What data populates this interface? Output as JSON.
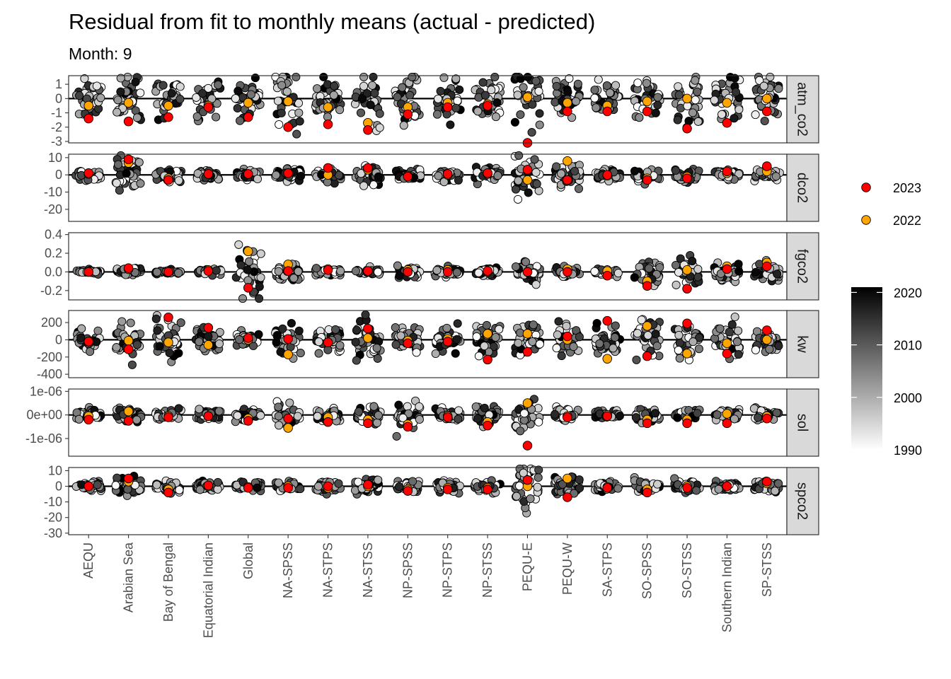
{
  "title": "Residual from fit to monthly means (actual - predicted)",
  "subtitle": "Month: 9",
  "chart_data": {
    "type": "scatter",
    "x_categories": [
      "AEQU",
      "Arabian Sea",
      "Bay of Bengal",
      "Equatorial Indian",
      "Global",
      "NA-SPSS",
      "NA-STPS",
      "NA-STSS",
      "NP-SPSS",
      "NP-STPS",
      "NP-STSS",
      "PEQU-E",
      "PEQU-W",
      "SA-STPS",
      "SO-SPSS",
      "SO-STSS",
      "Southern Indian",
      "SP-STSS"
    ],
    "facets": [
      {
        "name": "atm_co2",
        "ylim": [
          -3.1,
          1.6
        ],
        "ticks": [
          1,
          0,
          -1,
          -2,
          -3
        ],
        "tick_labels": [
          "1",
          "0",
          "-1",
          "-2",
          "-3"
        ],
        "spread": [
          0.7,
          0.8,
          0.8,
          0.7,
          0.7,
          1.1,
          0.8,
          0.9,
          1.1,
          0.8,
          0.8,
          1.1,
          0.7,
          0.6,
          0.8,
          0.9,
          0.8,
          0.7
        ],
        "y2023": [
          -1.4,
          -1.6,
          -1.3,
          -0.6,
          -1.3,
          -2.0,
          -1.8,
          -2.2,
          -1.1,
          -0.6,
          -0.5,
          -3.1,
          -0.9,
          -0.9,
          -0.9,
          -2.1,
          -1.7,
          -0.9
        ],
        "y2022": [
          -0.5,
          -0.3,
          -0.5,
          -0.5,
          -0.3,
          -0.2,
          -0.6,
          -1.7,
          -0.6,
          -0.3,
          -0.4,
          0.1,
          -0.3,
          -0.5,
          -0.2,
          0.0,
          -0.3,
          0.0
        ]
      },
      {
        "name": "dco2",
        "ylim": [
          -27,
          12
        ],
        "ticks": [
          10,
          0,
          -10,
          -20
        ],
        "tick_labels": [
          "10",
          "0",
          "-10",
          "-20"
        ],
        "spread": [
          1.5,
          4,
          2,
          1.5,
          1.5,
          2,
          2,
          3,
          1.8,
          2,
          2.2,
          6,
          4,
          1.5,
          1.8,
          2,
          1.5,
          2
        ],
        "y2023": [
          1,
          9,
          -3,
          0.5,
          0.5,
          1,
          4,
          4,
          -1,
          0.5,
          1,
          3,
          -3,
          0,
          -3,
          -2,
          2,
          5
        ],
        "y2022": [
          0.5,
          7,
          -2,
          0.5,
          0.5,
          1,
          0,
          3,
          -0.5,
          0,
          0.5,
          -3,
          8,
          -0.5,
          -2,
          -1,
          1,
          2
        ]
      },
      {
        "name": "fgco2",
        "ylim": [
          -0.3,
          0.42
        ],
        "ticks": [
          0.4,
          0.2,
          0.0,
          -0.2
        ],
        "tick_labels": [
          "0.4",
          "0.2",
          "0.0",
          "-0.2"
        ],
        "spread": [
          0.01,
          0.02,
          0.01,
          0.02,
          0.15,
          0.04,
          0.02,
          0.02,
          0.03,
          0.03,
          0.02,
          0.06,
          0.03,
          0.02,
          0.07,
          0.07,
          0.05,
          0.05
        ],
        "y2023": [
          0.0,
          0.04,
          0.0,
          0.01,
          -0.17,
          0.01,
          0.02,
          0.01,
          0.0,
          0.0,
          0.01,
          0.0,
          0.0,
          -0.04,
          -0.15,
          -0.18,
          0.03,
          0.06
        ],
        "y2022": [
          0.0,
          0.03,
          0.0,
          0.02,
          0.22,
          0.08,
          0.03,
          0.01,
          0.02,
          0.02,
          0.0,
          0.0,
          0.03,
          0.01,
          -0.1,
          0.02,
          0.06,
          0.1
        ]
      },
      {
        "name": "kw",
        "ylim": [
          -440,
          340
        ],
        "ticks": [
          200,
          0,
          -200,
          -400
        ],
        "tick_labels": [
          "200",
          "0",
          "-200",
          "-400"
        ],
        "spread": [
          60,
          120,
          120,
          80,
          50,
          90,
          60,
          110,
          80,
          70,
          100,
          110,
          100,
          90,
          110,
          110,
          100,
          80
        ],
        "y2023": [
          -20,
          -110,
          260,
          140,
          20,
          10,
          -30,
          130,
          -40,
          -20,
          -230,
          -140,
          40,
          220,
          -190,
          190,
          -160,
          110
        ],
        "y2022": [
          -30,
          -10,
          -30,
          -60,
          0,
          -170,
          -30,
          20,
          -10,
          10,
          70,
          70,
          0,
          -220,
          160,
          -160,
          -40,
          0
        ]
      },
      {
        "name": "sol",
        "ylim": [
          -1.75e-06,
          1.1e-06
        ],
        "ticks": [
          1e-06,
          0,
          -1e-06
        ],
        "tick_labels": [
          "1e-06",
          "0e+00",
          "-1e-06"
        ],
        "spread": [
          1.2e-07,
          1.5e-07,
          1.3e-07,
          1.2e-07,
          1.2e-07,
          3e-07,
          1.5e-07,
          2e-07,
          3.5e-07,
          1.5e-07,
          2e-07,
          3e-07,
          1.2e-07,
          1.2e-07,
          1.2e-07,
          1.2e-07,
          1.2e-07,
          1.2e-07
        ],
        "y2023": [
          -2e-07,
          -2.5e-07,
          -1e-07,
          -5e-08,
          -2.5e-07,
          -1.5e-07,
          -3e-07,
          -3.5e-07,
          -5e-07,
          -1e-07,
          -4.5e-07,
          -1.3e-06,
          -1e-07,
          -5e-08,
          -3.5e-07,
          -3.5e-07,
          -3.5e-07,
          -1.5e-07
        ],
        "y2022": [
          -5e-08,
          1.5e-07,
          -5e-08,
          -5e-08,
          -1.5e-07,
          -5.5e-07,
          -1e-07,
          -2e-07,
          -4e-07,
          -5e-08,
          -3e-07,
          5e-07,
          -5e-08,
          0,
          -2e-07,
          -2e-07,
          5e-08,
          -5e-08
        ]
      },
      {
        "name": "spco2",
        "ylim": [
          -31,
          12
        ],
        "ticks": [
          10,
          0,
          -10,
          -20,
          -30
        ],
        "tick_labels": [
          "10",
          "0",
          "-10",
          "-20",
          "-30"
        ],
        "spread": [
          1.5,
          3,
          2,
          1.5,
          1.5,
          2,
          2,
          2.5,
          2,
          2,
          2,
          7,
          3.5,
          1.5,
          2,
          2,
          1.5,
          2
        ],
        "y2023": [
          0,
          5,
          -4,
          0.5,
          -1,
          -1,
          0,
          1,
          -3,
          -2,
          -2,
          4,
          -7,
          -1,
          -4,
          -1,
          0,
          3
        ],
        "y2022": [
          0,
          3,
          -2,
          0,
          -0.5,
          0,
          -1,
          0,
          -2,
          -1,
          -1,
          0,
          5,
          -0.5,
          -2,
          0,
          0,
          2
        ]
      }
    ],
    "legend": [
      {
        "label": "2023",
        "color": "#ff0000"
      },
      {
        "label": "2022",
        "color": "#ffa500"
      }
    ],
    "colorbar": {
      "ticks": [
        "2020",
        "2010",
        "2000",
        "1990"
      ],
      "range": [
        1990,
        2021
      ]
    },
    "grid": false
  }
}
